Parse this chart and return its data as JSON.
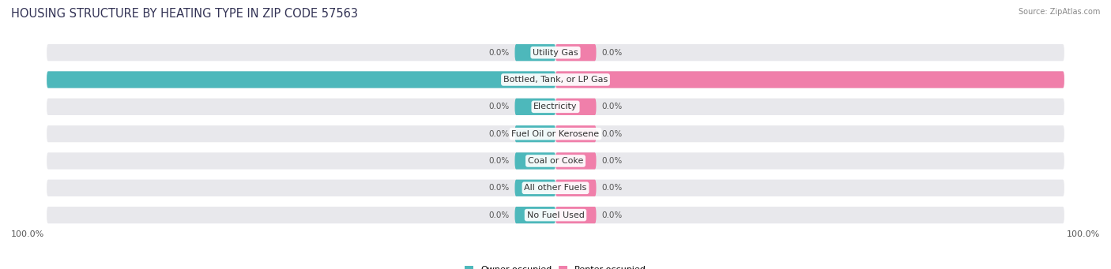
{
  "title": "HOUSING STRUCTURE BY HEATING TYPE IN ZIP CODE 57563",
  "source": "Source: ZipAtlas.com",
  "categories": [
    "Utility Gas",
    "Bottled, Tank, or LP Gas",
    "Electricity",
    "Fuel Oil or Kerosene",
    "Coal or Coke",
    "All other Fuels",
    "No Fuel Used"
  ],
  "owner_values": [
    0.0,
    100.0,
    0.0,
    0.0,
    0.0,
    0.0,
    0.0
  ],
  "renter_values": [
    0.0,
    100.0,
    0.0,
    0.0,
    0.0,
    0.0,
    0.0
  ],
  "owner_color": "#4db8bb",
  "renter_color": "#f07faa",
  "background_color": "#ffffff",
  "bar_background": "#e8e8ec",
  "stub_size": 8.0,
  "title_fontsize": 10.5,
  "label_fontsize": 8,
  "value_fontsize": 7.5,
  "axis_label_fontsize": 8
}
